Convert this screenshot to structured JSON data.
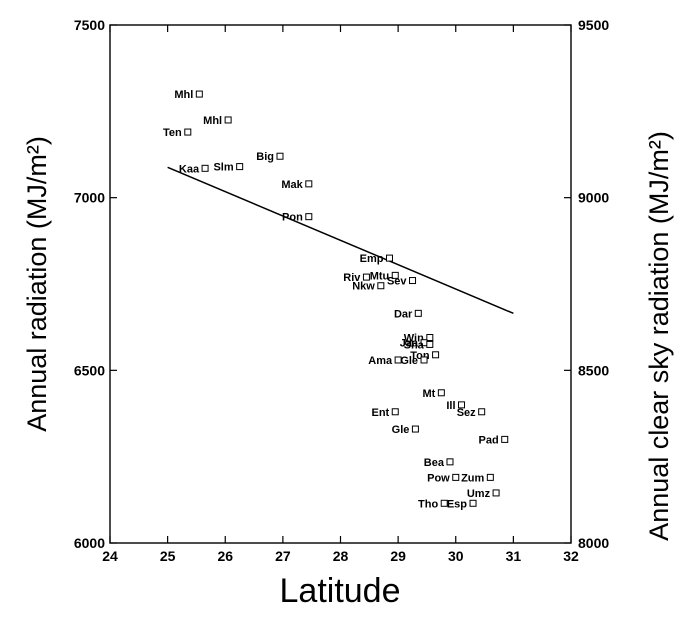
{
  "chart_data": {
    "type": "scatter",
    "title": "",
    "xlabel": "Latitude",
    "ylabel_left": "Annual radiation (MJ/m²)",
    "ylabel_right": "Annual clear sky radiation (MJ/m²)",
    "xlim": [
      24,
      32
    ],
    "ylim_left": [
      6000,
      7500
    ],
    "ylim_right": [
      8000,
      9500
    ],
    "xticks": [
      "24",
      "25",
      "26",
      "27",
      "28",
      "29",
      "30",
      "31",
      "32"
    ],
    "yticks_left": [
      "6000",
      "6500",
      "7000",
      "7500"
    ],
    "yticks_right": [
      "8000",
      "8500",
      "9000",
      "9500"
    ],
    "grid": false,
    "legend": "none",
    "points": [
      {
        "label": "Mhl",
        "x": 25.55,
        "y": 7300
      },
      {
        "label": "Mhl",
        "x": 26.05,
        "y": 7225
      },
      {
        "label": "Ten",
        "x": 25.35,
        "y": 7190
      },
      {
        "label": "Slm",
        "x": 26.25,
        "y": 7090
      },
      {
        "label": "Big",
        "x": 26.95,
        "y": 7120
      },
      {
        "label": "Kaa",
        "x": 25.65,
        "y": 7085
      },
      {
        "label": "Mak",
        "x": 27.45,
        "y": 7040
      },
      {
        "label": "Pon",
        "x": 27.45,
        "y": 6945
      },
      {
        "label": "Emp",
        "x": 28.85,
        "y": 6825
      },
      {
        "label": "Mtu",
        "x": 28.95,
        "y": 6775
      },
      {
        "label": "Riv",
        "x": 28.45,
        "y": 6770
      },
      {
        "label": "Sev",
        "x": 29.25,
        "y": 6760
      },
      {
        "label": "Nkw",
        "x": 28.7,
        "y": 6745
      },
      {
        "label": "Dar",
        "x": 29.35,
        "y": 6665
      },
      {
        "label": "Win",
        "x": 29.55,
        "y": 6595
      },
      {
        "label": "Jaa",
        "x": 29.45,
        "y": 6580
      },
      {
        "label": "Sha",
        "x": 29.55,
        "y": 6575
      },
      {
        "label": "Ton",
        "x": 29.65,
        "y": 6545
      },
      {
        "label": "Ama",
        "x": 29.0,
        "y": 6530
      },
      {
        "label": "Gle",
        "x": 29.45,
        "y": 6530
      },
      {
        "label": "Mt",
        "x": 29.75,
        "y": 6435
      },
      {
        "label": "Ill",
        "x": 30.1,
        "y": 6400
      },
      {
        "label": "Ent",
        "x": 28.95,
        "y": 6380
      },
      {
        "label": "Sez",
        "x": 30.45,
        "y": 6380
      },
      {
        "label": "Gle",
        "x": 29.3,
        "y": 6330
      },
      {
        "label": "Pad",
        "x": 30.85,
        "y": 6300
      },
      {
        "label": "Bea",
        "x": 29.9,
        "y": 6235
      },
      {
        "label": "Pow",
        "x": 30.0,
        "y": 6190
      },
      {
        "label": "Zum",
        "x": 30.6,
        "y": 6190
      },
      {
        "label": "Umz",
        "x": 30.7,
        "y": 6145
      },
      {
        "label": "Tho",
        "x": 29.8,
        "y": 6115
      },
      {
        "label": "Esp",
        "x": 30.3,
        "y": 6115
      }
    ],
    "line": {
      "axis": "right",
      "x": [
        25,
        31
      ],
      "y": [
        9088,
        8665
      ]
    }
  }
}
